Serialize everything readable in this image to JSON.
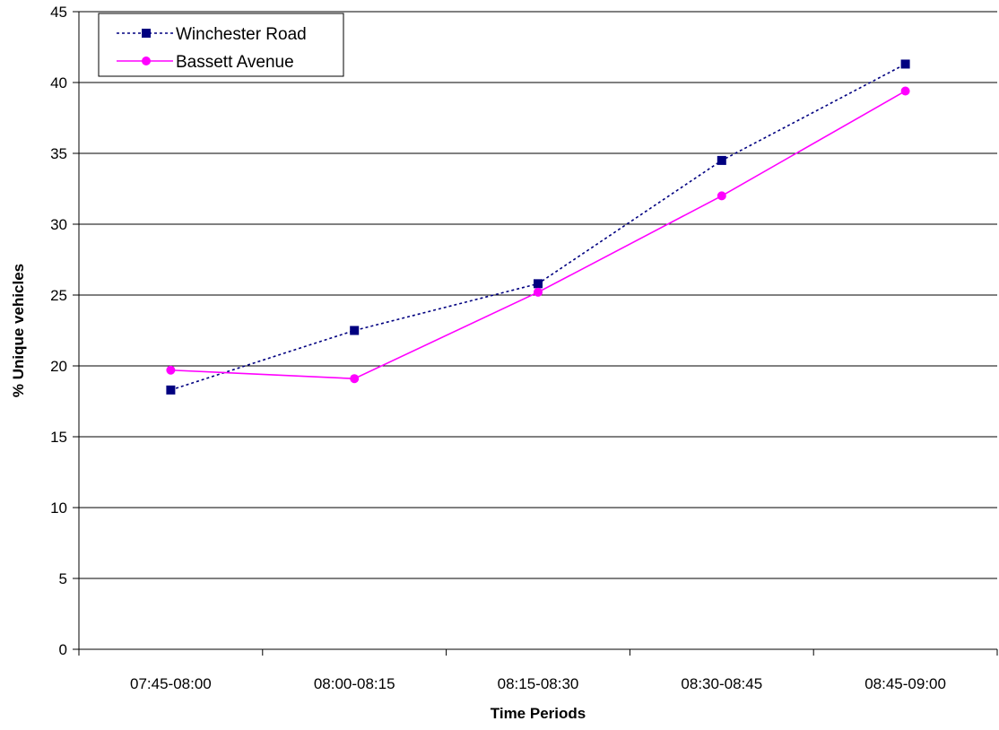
{
  "chart_data": {
    "type": "line",
    "title": "",
    "xlabel": "Time Periods",
    "ylabel": "% Unique vehicles",
    "ylim": [
      0,
      45
    ],
    "ytick_step": 5,
    "categories": [
      "07:45-08:00",
      "08:00-08:15",
      "08:15-08:30",
      "08:30-08:45",
      "08:45-09:00"
    ],
    "grid": "horizontal",
    "legend_position": "top-left",
    "series": [
      {
        "name": "Winchester Road",
        "values": [
          18.3,
          22.5,
          25.8,
          34.5,
          41.3
        ],
        "color": "#000080",
        "line_style": "dotted",
        "marker": "square"
      },
      {
        "name": "Bassett Avenue",
        "values": [
          19.7,
          19.1,
          25.2,
          32.0,
          39.4
        ],
        "color": "#ff00ff",
        "line_style": "solid",
        "marker": "circle"
      }
    ]
  }
}
